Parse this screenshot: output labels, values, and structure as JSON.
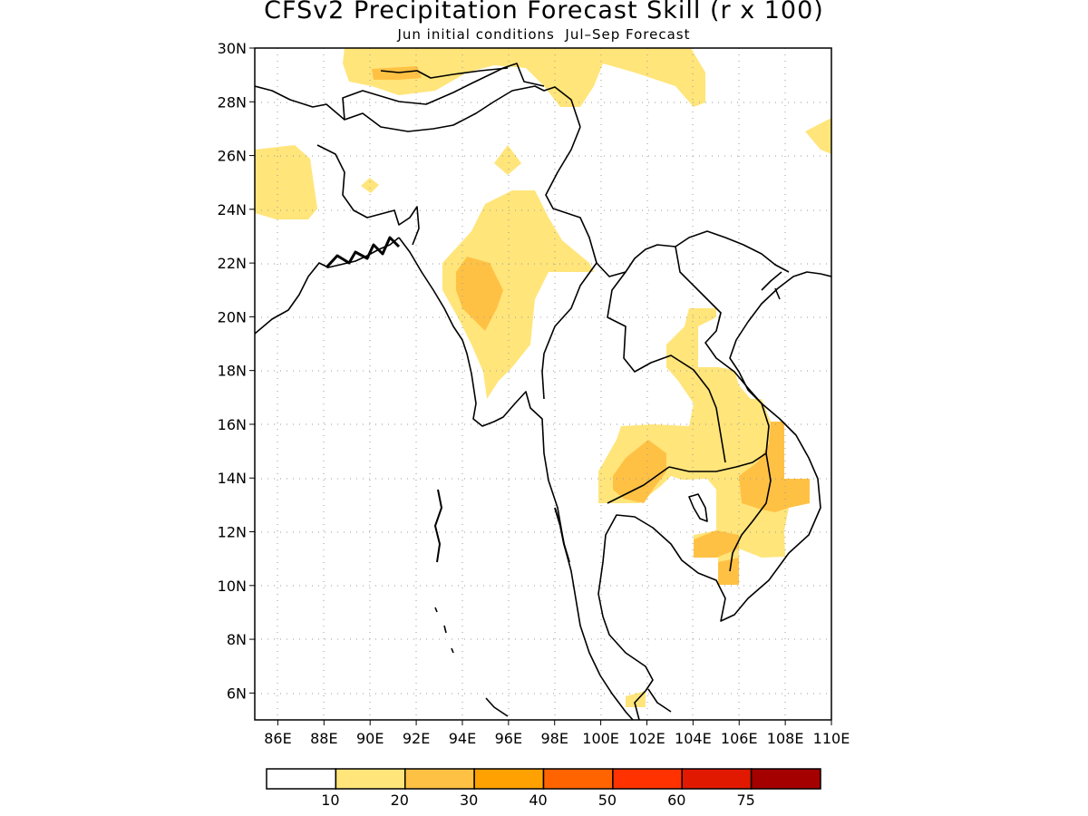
{
  "title": "CFSv2 Precipitation Forecast Skill (r x 100)",
  "subtitle": "Jun initial conditions  Jul–Sep Forecast",
  "map": {
    "lon_range": [
      85,
      110
    ],
    "lat_range": [
      5,
      30
    ],
    "lat_ticks": [
      "30N",
      "28N",
      "26N",
      "24N",
      "22N",
      "20N",
      "18N",
      "16N",
      "14N",
      "12N",
      "10N",
      "8N",
      "6N"
    ],
    "lon_ticks": [
      "86E",
      "88E",
      "90E",
      "92E",
      "94E",
      "96E",
      "98E",
      "100E",
      "102E",
      "104E",
      "106E",
      "108E",
      "110E"
    ],
    "grid": "dotted",
    "coastline_color": "#000000"
  },
  "colorbar": {
    "colors": [
      "#ffffff",
      "#ffe57a",
      "#ffc144",
      "#ffa100",
      "#ff6400",
      "#ff3200",
      "#e11900",
      "#a50000"
    ],
    "labels": [
      "10",
      "20",
      "30",
      "40",
      "50",
      "60",
      "75"
    ]
  },
  "skill_regions": [
    {
      "level": "10-20",
      "color": "#ffe57a",
      "areas": [
        "Northern Bay/Tibet border",
        "Bangladesh-Assam west",
        "Myanmar central",
        "Indochina (Laos, Cambodia, Vietnam)",
        "Malay peninsula south",
        "Eastern edge near 27N"
      ]
    },
    {
      "level": "20-30",
      "color": "#ffc144",
      "areas": [
        "Northern Myanmar interior",
        "Thailand-Cambodia east",
        "Southern Vietnam highlands",
        "Mekong delta"
      ]
    }
  ]
}
